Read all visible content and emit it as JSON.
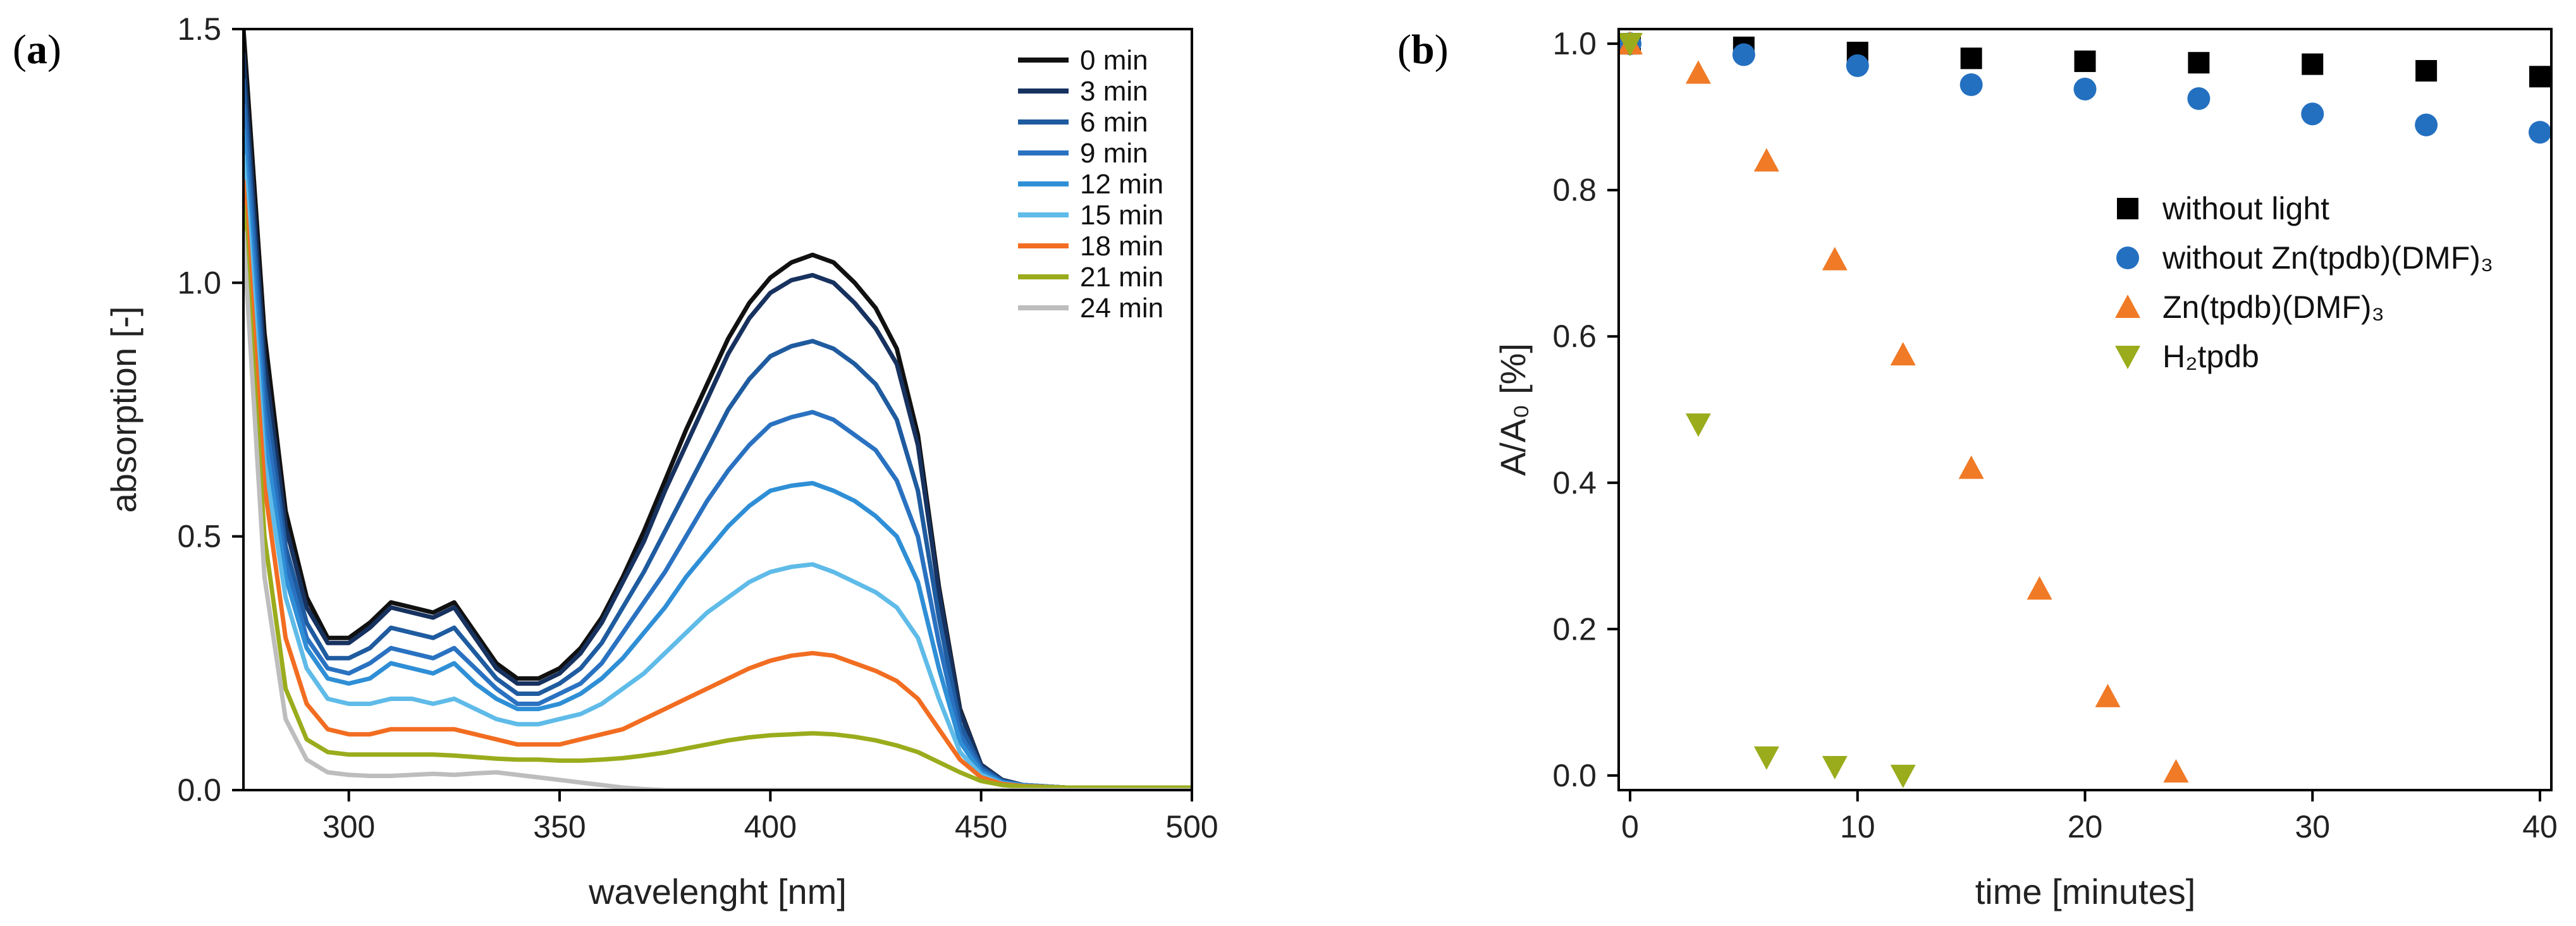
{
  "panels": {
    "a": {
      "label_open": "(",
      "label_letter": "a",
      "label_close": ")"
    },
    "b": {
      "label_open": "(",
      "label_letter": "b",
      "label_close": ")"
    }
  },
  "chart_data": [
    {
      "type": "line",
      "xlabel": "wavelenght [nm]",
      "ylabel": "absorption [-]",
      "xlim": [
        275,
        500
      ],
      "ylim": [
        0,
        1.5
      ],
      "xticks": [
        300,
        350,
        400,
        450,
        500
      ],
      "yticks": [
        0.0,
        0.5,
        1.0,
        1.5
      ],
      "ytick_labels": [
        "0.0",
        "0.5",
        "1.0",
        "1.5"
      ],
      "grid": false,
      "legend_position": "top-right",
      "x": [
        275,
        280,
        285,
        290,
        295,
        300,
        305,
        310,
        315,
        320,
        325,
        330,
        335,
        340,
        345,
        350,
        355,
        360,
        365,
        370,
        375,
        380,
        385,
        390,
        395,
        400,
        405,
        410,
        415,
        420,
        425,
        430,
        435,
        440,
        445,
        450,
        455,
        460,
        470,
        480,
        490,
        500
      ],
      "series": [
        {
          "name": "0 min",
          "color": "#111111",
          "values": [
            1.5,
            0.9,
            0.55,
            0.38,
            0.3,
            0.3,
            0.33,
            0.37,
            0.36,
            0.35,
            0.37,
            0.31,
            0.25,
            0.22,
            0.22,
            0.24,
            0.28,
            0.34,
            0.42,
            0.51,
            0.61,
            0.71,
            0.8,
            0.89,
            0.96,
            1.01,
            1.04,
            1.055,
            1.04,
            1.0,
            0.95,
            0.87,
            0.7,
            0.4,
            0.16,
            0.05,
            0.02,
            0.01,
            0.005,
            0.005,
            0.005,
            0.005
          ]
        },
        {
          "name": "3 min",
          "color": "#17325f",
          "values": [
            1.45,
            0.85,
            0.52,
            0.36,
            0.29,
            0.29,
            0.32,
            0.36,
            0.35,
            0.34,
            0.36,
            0.3,
            0.24,
            0.21,
            0.21,
            0.23,
            0.27,
            0.33,
            0.41,
            0.49,
            0.59,
            0.68,
            0.77,
            0.86,
            0.93,
            0.98,
            1.005,
            1.015,
            1.0,
            0.96,
            0.91,
            0.84,
            0.68,
            0.39,
            0.155,
            0.05,
            0.02,
            0.01,
            0.005,
            0.005,
            0.005,
            0.005
          ]
        },
        {
          "name": "6 min",
          "color": "#1f5b9f",
          "values": [
            1.4,
            0.8,
            0.48,
            0.33,
            0.26,
            0.26,
            0.28,
            0.32,
            0.31,
            0.3,
            0.32,
            0.27,
            0.22,
            0.19,
            0.19,
            0.21,
            0.24,
            0.29,
            0.36,
            0.43,
            0.51,
            0.59,
            0.67,
            0.75,
            0.81,
            0.855,
            0.875,
            0.885,
            0.87,
            0.84,
            0.8,
            0.73,
            0.59,
            0.34,
            0.13,
            0.045,
            0.018,
            0.01,
            0.005,
            0.005,
            0.005,
            0.005
          ]
        },
        {
          "name": "9 min",
          "color": "#2a72c1",
          "values": [
            1.35,
            0.75,
            0.45,
            0.3,
            0.24,
            0.23,
            0.25,
            0.28,
            0.27,
            0.26,
            0.28,
            0.24,
            0.2,
            0.17,
            0.17,
            0.19,
            0.21,
            0.25,
            0.31,
            0.37,
            0.43,
            0.5,
            0.57,
            0.63,
            0.68,
            0.72,
            0.735,
            0.745,
            0.73,
            0.7,
            0.67,
            0.61,
            0.5,
            0.29,
            0.11,
            0.04,
            0.016,
            0.01,
            0.005,
            0.005,
            0.005,
            0.005
          ]
        },
        {
          "name": "12 min",
          "color": "#2f8fd6",
          "values": [
            1.3,
            0.7,
            0.42,
            0.28,
            0.22,
            0.21,
            0.22,
            0.25,
            0.24,
            0.23,
            0.25,
            0.21,
            0.18,
            0.16,
            0.16,
            0.17,
            0.19,
            0.22,
            0.26,
            0.31,
            0.36,
            0.42,
            0.47,
            0.52,
            0.56,
            0.59,
            0.6,
            0.605,
            0.59,
            0.57,
            0.54,
            0.5,
            0.41,
            0.24,
            0.095,
            0.035,
            0.015,
            0.01,
            0.005,
            0.005,
            0.005,
            0.005
          ]
        },
        {
          "name": "15 min",
          "color": "#5fbbe8",
          "values": [
            1.25,
            0.65,
            0.38,
            0.24,
            0.18,
            0.17,
            0.17,
            0.18,
            0.18,
            0.17,
            0.18,
            0.16,
            0.14,
            0.13,
            0.13,
            0.14,
            0.15,
            0.17,
            0.2,
            0.23,
            0.27,
            0.31,
            0.35,
            0.38,
            0.41,
            0.43,
            0.44,
            0.445,
            0.43,
            0.41,
            0.39,
            0.36,
            0.3,
            0.18,
            0.075,
            0.03,
            0.013,
            0.008,
            0.005,
            0.005,
            0.005,
            0.005
          ]
        },
        {
          "name": "18 min",
          "color": "#f26d21",
          "values": [
            1.2,
            0.6,
            0.3,
            0.17,
            0.12,
            0.11,
            0.11,
            0.12,
            0.12,
            0.12,
            0.12,
            0.11,
            0.1,
            0.09,
            0.09,
            0.09,
            0.1,
            0.11,
            0.12,
            0.14,
            0.16,
            0.18,
            0.2,
            0.22,
            0.24,
            0.255,
            0.265,
            0.27,
            0.265,
            0.25,
            0.235,
            0.215,
            0.18,
            0.12,
            0.06,
            0.025,
            0.012,
            0.008,
            0.005,
            0.005,
            0.005,
            0.005
          ]
        },
        {
          "name": "21 min",
          "color": "#9aac1c",
          "values": [
            1.15,
            0.5,
            0.2,
            0.1,
            0.075,
            0.07,
            0.07,
            0.07,
            0.07,
            0.07,
            0.068,
            0.065,
            0.062,
            0.06,
            0.06,
            0.058,
            0.058,
            0.06,
            0.063,
            0.068,
            0.074,
            0.082,
            0.09,
            0.098,
            0.104,
            0.108,
            0.11,
            0.112,
            0.11,
            0.105,
            0.098,
            0.088,
            0.075,
            0.055,
            0.035,
            0.018,
            0.01,
            0.007,
            0.005,
            0.005,
            0.005,
            0.005
          ]
        },
        {
          "name": "24 min",
          "color": "#bdbdbd",
          "values": [
            1.1,
            0.42,
            0.14,
            0.06,
            0.035,
            0.03,
            0.028,
            0.028,
            0.03,
            0.032,
            0.03,
            0.033,
            0.035,
            0.03,
            0.025,
            0.02,
            0.015,
            0.01,
            0.005,
            0.002,
            0.0,
            0.0,
            0.0,
            0.0,
            0.0,
            0.0,
            0.0,
            0.0,
            0.0,
            0.0,
            0.0,
            0.0,
            0.0,
            0.0,
            0.0,
            0.0,
            0.0,
            0.0,
            0.0,
            0.0,
            0.0,
            0.0
          ]
        }
      ]
    },
    {
      "type": "scatter",
      "xlabel": "time [minutes]",
      "ylabel": "A/A₀ [%]",
      "xlim": [
        -0.5,
        40.5
      ],
      "ylim": [
        -0.02,
        1.02
      ],
      "xticks": [
        0,
        10,
        20,
        30,
        40
      ],
      "yticks": [
        0.0,
        0.2,
        0.4,
        0.6,
        0.8,
        1.0
      ],
      "ytick_labels": [
        "0.0",
        "0.2",
        "0.4",
        "0.6",
        "0.8",
        "1.0"
      ],
      "grid": false,
      "legend_position": "center-right",
      "series": [
        {
          "name": "without light",
          "marker": "square",
          "color": "#000000",
          "x": [
            0,
            5,
            10,
            15,
            20,
            25,
            30,
            35,
            40
          ],
          "y": [
            1.0,
            0.995,
            0.988,
            0.98,
            0.976,
            0.974,
            0.972,
            0.963,
            0.955
          ]
        },
        {
          "name": "without Zn(tpdb)(DMF)₃",
          "marker": "circle",
          "color": "#2470c0",
          "x": [
            0,
            5,
            10,
            15,
            20,
            25,
            30,
            35,
            40
          ],
          "y": [
            1.0,
            0.985,
            0.97,
            0.944,
            0.938,
            0.925,
            0.904,
            0.889,
            0.879
          ]
        },
        {
          "name": "Zn(tpdb)(DMF)₃",
          "marker": "triangle-up",
          "color": "#f07a26",
          "x": [
            0,
            3,
            6,
            9,
            12,
            15,
            18,
            21,
            24
          ],
          "y": [
            1.0,
            0.96,
            0.84,
            0.705,
            0.575,
            0.42,
            0.255,
            0.108,
            0.005
          ]
        },
        {
          "name": "H₂tpdb",
          "marker": "triangle-down",
          "color": "#9aac1c",
          "x": [
            0,
            3,
            6,
            9,
            12
          ],
          "y": [
            1.0,
            0.48,
            0.025,
            0.012,
            0.0
          ]
        }
      ]
    }
  ]
}
